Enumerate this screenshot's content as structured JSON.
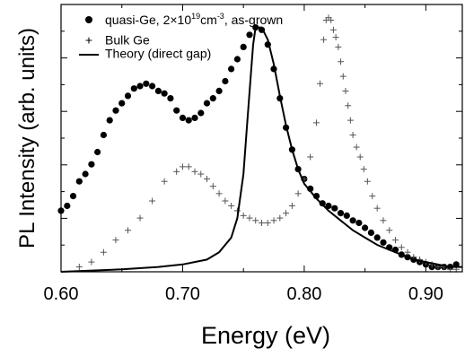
{
  "chart_data": {
    "type": "scatter",
    "title": "",
    "xlabel": "Energy (eV)",
    "ylabel": "PL Intensity (arb. units)",
    "xlim": [
      0.6,
      0.93
    ],
    "ylim": [
      0,
      1.05
    ],
    "x_ticks": [
      0.6,
      0.7,
      0.8,
      0.9
    ],
    "x_tick_labels": [
      "0.60",
      "0.70",
      "0.80",
      "0.90"
    ],
    "y_tick_count": 10,
    "y_tick_labels_shown": false,
    "grid": false,
    "legend_position": "top-left",
    "legend": [
      {
        "label": "quasi-Ge, 2×10",
        "sup": "19",
        "unit": "cm",
        "unit_sup": "-3",
        "suffix": ", as-grown",
        "marker": "filled-circle"
      },
      {
        "label": "Bulk Ge",
        "marker": "plus"
      },
      {
        "label": "Theory (direct gap)",
        "marker": "line"
      }
    ],
    "series": [
      {
        "name": "quasi-Ge, 2×10^19 cm^-3, as-grown",
        "style": "filled-circle",
        "points": [
          [
            0.6,
            0.25
          ],
          [
            0.605,
            0.27
          ],
          [
            0.61,
            0.31
          ],
          [
            0.615,
            0.37
          ],
          [
            0.62,
            0.4
          ],
          [
            0.625,
            0.44
          ],
          [
            0.63,
            0.49
          ],
          [
            0.635,
            0.56
          ],
          [
            0.64,
            0.62
          ],
          [
            0.645,
            0.66
          ],
          [
            0.65,
            0.69
          ],
          [
            0.655,
            0.72
          ],
          [
            0.66,
            0.75
          ],
          [
            0.665,
            0.76
          ],
          [
            0.67,
            0.77
          ],
          [
            0.675,
            0.76
          ],
          [
            0.68,
            0.74
          ],
          [
            0.685,
            0.73
          ],
          [
            0.69,
            0.71
          ],
          [
            0.695,
            0.66
          ],
          [
            0.7,
            0.63
          ],
          [
            0.705,
            0.62
          ],
          [
            0.71,
            0.63
          ],
          [
            0.715,
            0.65
          ],
          [
            0.72,
            0.69
          ],
          [
            0.725,
            0.71
          ],
          [
            0.73,
            0.74
          ],
          [
            0.735,
            0.78
          ],
          [
            0.74,
            0.83
          ],
          [
            0.745,
            0.87
          ],
          [
            0.75,
            0.92
          ],
          [
            0.755,
            0.97
          ],
          [
            0.76,
            1.0
          ],
          [
            0.765,
            0.99
          ],
          [
            0.77,
            0.93
          ],
          [
            0.775,
            0.83
          ],
          [
            0.78,
            0.71
          ],
          [
            0.785,
            0.59
          ],
          [
            0.79,
            0.5
          ],
          [
            0.795,
            0.42
          ],
          [
            0.8,
            0.38
          ],
          [
            0.805,
            0.34
          ],
          [
            0.81,
            0.31
          ],
          [
            0.815,
            0.28
          ],
          [
            0.82,
            0.27
          ],
          [
            0.825,
            0.26
          ],
          [
            0.83,
            0.24
          ],
          [
            0.835,
            0.23
          ],
          [
            0.84,
            0.21
          ],
          [
            0.845,
            0.2
          ],
          [
            0.85,
            0.18
          ],
          [
            0.855,
            0.16
          ],
          [
            0.86,
            0.14
          ],
          [
            0.865,
            0.12
          ],
          [
            0.87,
            0.1
          ],
          [
            0.875,
            0.09
          ],
          [
            0.88,
            0.07
          ],
          [
            0.885,
            0.06
          ],
          [
            0.89,
            0.05
          ],
          [
            0.895,
            0.04
          ],
          [
            0.9,
            0.03
          ],
          [
            0.905,
            0.02
          ],
          [
            0.91,
            0.02
          ],
          [
            0.915,
            0.02
          ],
          [
            0.92,
            0.02
          ],
          [
            0.925,
            0.03
          ]
        ]
      },
      {
        "name": "Bulk Ge",
        "style": "plus",
        "points": [
          [
            0.615,
            0.02
          ],
          [
            0.625,
            0.04
          ],
          [
            0.635,
            0.08
          ],
          [
            0.645,
            0.13
          ],
          [
            0.655,
            0.17
          ],
          [
            0.665,
            0.22
          ],
          [
            0.675,
            0.29
          ],
          [
            0.685,
            0.37
          ],
          [
            0.695,
            0.41
          ],
          [
            0.7,
            0.43
          ],
          [
            0.705,
            0.43
          ],
          [
            0.71,
            0.41
          ],
          [
            0.715,
            0.4
          ],
          [
            0.72,
            0.38
          ],
          [
            0.725,
            0.35
          ],
          [
            0.73,
            0.32
          ],
          [
            0.735,
            0.29
          ],
          [
            0.74,
            0.27
          ],
          [
            0.745,
            0.25
          ],
          [
            0.75,
            0.23
          ],
          [
            0.755,
            0.22
          ],
          [
            0.76,
            0.21
          ],
          [
            0.765,
            0.2
          ],
          [
            0.77,
            0.2
          ],
          [
            0.775,
            0.21
          ],
          [
            0.78,
            0.22
          ],
          [
            0.785,
            0.24
          ],
          [
            0.79,
            0.27
          ],
          [
            0.795,
            0.32
          ],
          [
            0.8,
            0.38
          ],
          [
            0.805,
            0.47
          ],
          [
            0.81,
            0.61
          ],
          [
            0.813,
            0.77
          ],
          [
            0.816,
            0.95
          ],
          [
            0.818,
            1.03
          ],
          [
            0.82,
            1.04
          ],
          [
            0.822,
            1.03
          ],
          [
            0.824,
            0.99
          ],
          [
            0.826,
            0.96
          ],
          [
            0.828,
            0.92
          ],
          [
            0.83,
            0.86
          ],
          [
            0.832,
            0.8
          ],
          [
            0.834,
            0.74
          ],
          [
            0.836,
            0.68
          ],
          [
            0.838,
            0.62
          ],
          [
            0.84,
            0.56
          ],
          [
            0.843,
            0.51
          ],
          [
            0.846,
            0.47
          ],
          [
            0.849,
            0.42
          ],
          [
            0.852,
            0.37
          ],
          [
            0.856,
            0.31
          ],
          [
            0.86,
            0.26
          ],
          [
            0.865,
            0.21
          ],
          [
            0.87,
            0.17
          ],
          [
            0.875,
            0.13
          ],
          [
            0.88,
            0.1
          ],
          [
            0.885,
            0.08
          ],
          [
            0.89,
            0.06
          ],
          [
            0.895,
            0.05
          ],
          [
            0.9,
            0.04
          ],
          [
            0.905,
            0.03
          ],
          [
            0.91,
            0.02
          ],
          [
            0.915,
            0.02
          ],
          [
            0.92,
            0.01
          ],
          [
            0.925,
            0.01
          ]
        ]
      },
      {
        "name": "Theory (direct gap)",
        "style": "line",
        "points": [
          [
            0.6,
            0.0
          ],
          [
            0.65,
            0.01
          ],
          [
            0.68,
            0.02
          ],
          [
            0.7,
            0.03
          ],
          [
            0.72,
            0.05
          ],
          [
            0.73,
            0.08
          ],
          [
            0.74,
            0.14
          ],
          [
            0.745,
            0.22
          ],
          [
            0.75,
            0.4
          ],
          [
            0.753,
            0.6
          ],
          [
            0.756,
            0.8
          ],
          [
            0.758,
            0.93
          ],
          [
            0.76,
            1.0
          ],
          [
            0.765,
            1.0
          ],
          [
            0.77,
            0.95
          ],
          [
            0.775,
            0.85
          ],
          [
            0.78,
            0.72
          ],
          [
            0.785,
            0.6
          ],
          [
            0.79,
            0.5
          ],
          [
            0.795,
            0.42
          ],
          [
            0.8,
            0.36
          ],
          [
            0.81,
            0.3
          ],
          [
            0.82,
            0.25
          ],
          [
            0.83,
            0.21
          ],
          [
            0.84,
            0.17
          ],
          [
            0.85,
            0.14
          ],
          [
            0.86,
            0.11
          ],
          [
            0.87,
            0.09
          ],
          [
            0.88,
            0.07
          ],
          [
            0.89,
            0.05
          ],
          [
            0.9,
            0.04
          ],
          [
            0.91,
            0.03
          ],
          [
            0.92,
            0.02
          ],
          [
            0.93,
            0.02
          ]
        ]
      }
    ]
  }
}
